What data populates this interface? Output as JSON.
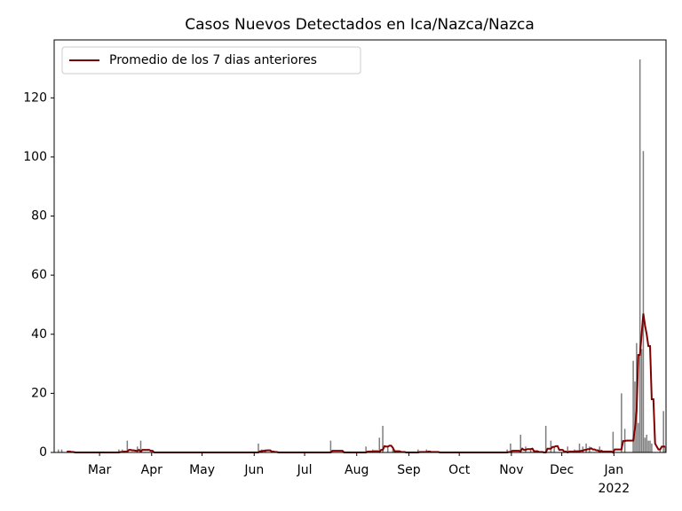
{
  "chart_data": {
    "type": "bar",
    "title": "Casos Nuevos Detectados en Ica/Nazca/Nazca",
    "categories": [
      null,
      null,
      null,
      null,
      null,
      null,
      null,
      null,
      null,
      null,
      null,
      null,
      null,
      null,
      null,
      null,
      null,
      null,
      null,
      null,
      null,
      null,
      null,
      null,
      null,
      null,
      null,
      "Mar",
      null,
      null,
      null,
      null,
      null,
      null,
      null,
      null,
      null,
      null,
      null,
      null,
      null,
      null,
      null,
      null,
      null,
      null,
      null,
      null,
      null,
      null,
      null,
      null,
      null,
      null,
      null,
      null,
      null,
      null,
      "Apr",
      null,
      null,
      null,
      null,
      null,
      null,
      null,
      null,
      null,
      null,
      null,
      null,
      null,
      null,
      null,
      null,
      null,
      null,
      null,
      null,
      null,
      null,
      null,
      null,
      null,
      null,
      null,
      null,
      null,
      "May",
      null,
      null,
      null,
      null,
      null,
      null,
      null,
      null,
      null,
      null,
      null,
      null,
      null,
      null,
      null,
      null,
      null,
      null,
      null,
      null,
      null,
      null,
      null,
      null,
      null,
      null,
      null,
      null,
      null,
      null,
      "Jun",
      null,
      null,
      null,
      null,
      null,
      null,
      null,
      null,
      null,
      null,
      null,
      null,
      null,
      null,
      null,
      null,
      null,
      null,
      null,
      null,
      null,
      null,
      null,
      null,
      null,
      null,
      null,
      null,
      null,
      "Jul",
      null,
      null,
      null,
      null,
      null,
      null,
      null,
      null,
      null,
      null,
      null,
      null,
      null,
      null,
      null,
      null,
      null,
      null,
      null,
      null,
      null,
      null,
      null,
      null,
      null,
      null,
      null,
      null,
      null,
      null,
      "Aug",
      null,
      null,
      null,
      null,
      null,
      null,
      null,
      null,
      null,
      null,
      null,
      null,
      null,
      null,
      null,
      null,
      null,
      null,
      null,
      null,
      null,
      null,
      null,
      null,
      null,
      null,
      null,
      null,
      null,
      null,
      "Sep",
      null,
      null,
      null,
      null,
      null,
      null,
      null,
      null,
      null,
      null,
      null,
      null,
      null,
      null,
      null,
      null,
      null,
      null,
      null,
      null,
      null,
      null,
      null,
      null,
      null,
      null,
      null,
      null,
      null,
      "Oct",
      null,
      null,
      null,
      null,
      null,
      null,
      null,
      null,
      null,
      null,
      null,
      null,
      null,
      null,
      null,
      null,
      null,
      null,
      null,
      null,
      null,
      null,
      null,
      null,
      null,
      null,
      null,
      null,
      null,
      null,
      "Nov",
      null,
      null,
      null,
      null,
      null,
      null,
      null,
      null,
      null,
      null,
      null,
      null,
      null,
      null,
      null,
      null,
      null,
      null,
      null,
      null,
      null,
      null,
      null,
      null,
      null,
      null,
      null,
      null,
      null,
      "Dec",
      null,
      null,
      null,
      null,
      null,
      null,
      null,
      null,
      null,
      null,
      null,
      null,
      null,
      null,
      null,
      null,
      null,
      null,
      null,
      null,
      null,
      null,
      null,
      null,
      null,
      null,
      null,
      null,
      null,
      null,
      "Jan",
      null,
      null,
      null,
      null,
      null,
      null,
      null,
      null,
      null,
      null,
      null,
      null,
      null,
      null,
      null,
      null,
      null,
      null,
      null,
      null,
      null,
      null,
      null,
      null,
      null,
      null,
      null,
      null,
      null,
      null
    ],
    "x_year_label": "2022",
    "series": [
      {
        "type": "bar",
        "color": "#7f7f7f",
        "values": [
          0,
          0,
          1,
          0,
          1,
          0,
          0,
          0,
          0,
          0,
          0,
          0,
          0,
          0,
          0,
          0,
          0,
          0,
          0,
          0,
          0,
          0,
          0,
          0,
          0,
          0,
          0,
          0,
          0,
          0,
          0,
          0,
          0,
          0,
          0,
          0,
          0,
          0,
          1,
          0,
          1,
          0,
          0,
          4,
          0,
          0,
          0,
          0,
          0,
          2,
          0,
          4,
          0,
          0,
          0,
          0,
          0,
          0,
          0,
          0,
          0,
          0,
          0,
          0,
          0,
          0,
          0,
          0,
          0,
          0,
          0,
          0,
          0,
          0,
          0,
          0,
          0,
          0,
          0,
          0,
          0,
          0,
          0,
          0,
          0,
          0,
          0,
          0,
          0,
          0,
          0,
          0,
          0,
          0,
          0,
          0,
          0,
          0,
          0,
          0,
          0,
          0,
          0,
          0,
          0,
          0,
          0,
          0,
          0,
          0,
          0,
          0,
          0,
          0,
          0,
          0,
          0,
          0,
          0,
          0,
          0,
          3,
          0,
          1,
          0,
          1,
          0,
          0,
          0,
          0,
          0,
          0,
          0,
          0,
          0,
          0,
          0,
          0,
          0,
          0,
          0,
          0,
          0,
          0,
          0,
          0,
          0,
          0,
          0,
          0,
          0,
          0,
          0,
          0,
          0,
          0,
          0,
          0,
          0,
          0,
          0,
          0,
          0,
          0,
          4,
          0,
          0,
          0,
          0,
          0,
          0,
          0,
          0,
          0,
          0,
          0,
          0,
          0,
          0,
          0,
          0,
          0,
          0,
          0,
          0,
          2,
          0,
          0,
          0,
          1,
          0,
          0,
          0,
          5,
          0,
          9,
          0,
          0,
          2,
          0,
          0,
          1,
          0,
          0,
          0,
          0,
          0,
          0,
          0,
          0,
          0,
          0,
          0,
          0,
          0,
          0,
          1,
          0,
          0,
          0,
          0,
          1,
          0,
          0,
          0,
          0,
          0,
          0,
          0,
          0,
          0,
          0,
          0,
          0,
          0,
          0,
          0,
          0,
          0,
          0,
          0,
          0,
          0,
          0,
          0,
          0,
          0,
          0,
          0,
          0,
          0,
          0,
          0,
          0,
          0,
          0,
          0,
          0,
          0,
          0,
          0,
          0,
          0,
          0,
          0,
          0,
          0,
          0,
          0,
          1,
          0,
          3,
          0,
          0,
          0,
          0,
          0,
          6,
          0,
          0,
          2,
          0,
          0,
          1,
          0,
          0,
          0,
          0,
          0,
          0,
          0,
          0,
          9,
          0,
          0,
          4,
          0,
          2,
          0,
          0,
          0,
          0,
          0,
          0,
          0,
          2,
          0,
          0,
          0,
          1,
          0,
          0,
          3,
          0,
          2,
          0,
          3,
          0,
          2,
          0,
          0,
          0,
          0,
          0,
          2,
          0,
          0,
          0,
          0,
          0,
          0,
          0,
          7,
          0,
          0,
          0,
          0,
          20,
          0,
          8,
          0,
          0,
          0,
          0,
          31,
          24,
          37,
          10,
          133,
          35,
          102,
          5,
          6,
          4,
          4,
          3,
          0,
          0,
          0,
          0,
          1,
          0,
          14,
          2
        ]
      },
      {
        "type": "line",
        "name": "Promedio de los 7 dias anteriores",
        "color": "#800000",
        "values": [
          null,
          null,
          null,
          null,
          null,
          null,
          null,
          0.29,
          0.29,
          0.29,
          0.14,
          0.14,
          0,
          0,
          0,
          0,
          0,
          0,
          0,
          0,
          0,
          0,
          0,
          0,
          0,
          0,
          0,
          0,
          0,
          0,
          0,
          0,
          0,
          0,
          0,
          0,
          0,
          0,
          0,
          0.14,
          0.14,
          0.29,
          0.29,
          0.29,
          0.86,
          0.86,
          0.71,
          0.71,
          0.57,
          0.57,
          0.86,
          0.29,
          0.86,
          0.86,
          0.86,
          0.86,
          0.86,
          0.57,
          0.57,
          0,
          0,
          0,
          0,
          0,
          0,
          0,
          0,
          0,
          0,
          0,
          0,
          0,
          0,
          0,
          0,
          0,
          0,
          0,
          0,
          0,
          0,
          0,
          0,
          0,
          0,
          0,
          0,
          0,
          0,
          0,
          0,
          0,
          0,
          0,
          0,
          0,
          0,
          0,
          0,
          0,
          0,
          0,
          0,
          0,
          0,
          0,
          0,
          0,
          0,
          0,
          0,
          0,
          0,
          0,
          0,
          0,
          0,
          0,
          0,
          0,
          0,
          0,
          0.43,
          0.43,
          0.57,
          0.57,
          0.71,
          0.71,
          0.71,
          0.29,
          0.29,
          0.14,
          0.14,
          0,
          0,
          0,
          0,
          0,
          0,
          0,
          0,
          0,
          0,
          0,
          0,
          0,
          0,
          0,
          0,
          0,
          0,
          0,
          0,
          0,
          0,
          0,
          0,
          0,
          0,
          0,
          0,
          0,
          0,
          0,
          0,
          0.57,
          0.57,
          0.57,
          0.57,
          0.57,
          0.57,
          0.57,
          0,
          0,
          0,
          0,
          0,
          0,
          0,
          0,
          0,
          0,
          0,
          0,
          0,
          0,
          0.29,
          0.29,
          0.29,
          0.29,
          0.43,
          0.43,
          0.43,
          0.14,
          0.86,
          0.86,
          2.14,
          2,
          2,
          2.29,
          2.29,
          1.57,
          0.43,
          0.43,
          0.43,
          0.43,
          0.14,
          0.14,
          0.14,
          0,
          0,
          0,
          0,
          0,
          0,
          0,
          0,
          0.14,
          0.14,
          0.14,
          0.14,
          0.14,
          0.29,
          0.29,
          0.14,
          0.14,
          0.14,
          0.14,
          0.14,
          0,
          0,
          0,
          0,
          0,
          0,
          0,
          0,
          0,
          0,
          0,
          0,
          0,
          0,
          0,
          0,
          0,
          0,
          0,
          0,
          0,
          0,
          0,
          0,
          0,
          0,
          0,
          0,
          0,
          0,
          0,
          0,
          0,
          0,
          0,
          0,
          0,
          0,
          0,
          0,
          0,
          0.14,
          0.14,
          0.57,
          0.57,
          0.57,
          0.57,
          0.57,
          0.43,
          1.29,
          0.86,
          0.86,
          1.14,
          1.14,
          1.14,
          1.29,
          0.43,
          0.43,
          0.43,
          0.14,
          0.14,
          0.14,
          0,
          0,
          1.29,
          1.29,
          1.29,
          1.86,
          1.86,
          2.14,
          2.14,
          0.86,
          0.86,
          0.86,
          0.29,
          0.29,
          0,
          0.29,
          0.29,
          0.29,
          0.29,
          0.43,
          0.43,
          0.43,
          0.57,
          0.57,
          0.86,
          0.86,
          1.14,
          1.14,
          1.43,
          1,
          1,
          0.71,
          0.71,
          0.29,
          0.57,
          0.29,
          0.29,
          0.29,
          0.29,
          0.29,
          0.29,
          0,
          1,
          1,
          1,
          1,
          1,
          3.86,
          3.86,
          4,
          4,
          4,
          4,
          4,
          8,
          14,
          33,
          33,
          40,
          47,
          43,
          40,
          36,
          36,
          18,
          18,
          3,
          2,
          1,
          1,
          2,
          2,
          2
        ]
      }
    ],
    "ylim": [
      0,
      139.6
    ],
    "yticks": [
      0,
      20,
      40,
      60,
      80,
      100,
      120
    ],
    "legend": "upper left"
  }
}
